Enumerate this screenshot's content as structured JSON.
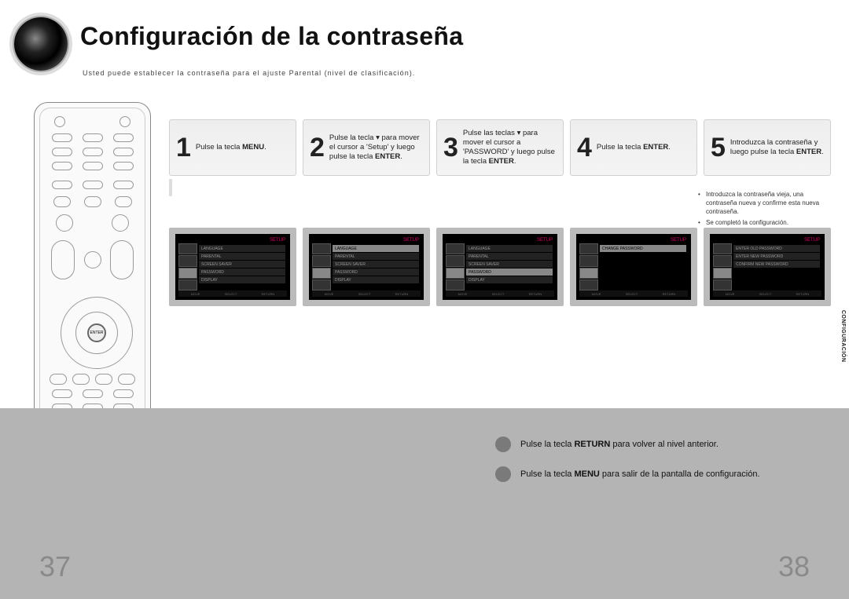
{
  "title": "Configuración de la contraseña",
  "subtitle": "Usted puede establecer la contraseña para el ajuste Parental (nivel de clasificación).",
  "remote": {
    "enter_label": "ENTER"
  },
  "steps": [
    {
      "num": "1",
      "html": "Pulse la tecla <b>MENU</b>."
    },
    {
      "num": "2",
      "html": "Pulse la tecla ▾ para mover el cursor a 'Setup' y luego pulse la tecla <b>ENTER</b>."
    },
    {
      "num": "3",
      "html": "Pulse las teclas ▾ para mover el cursor a 'PASSWORD' y luego pulse la tecla <b>ENTER</b>."
    },
    {
      "num": "4",
      "html": "Pulse la tecla <b>ENTER</b>."
    },
    {
      "num": "5",
      "html": "Introduzca la contraseña y luego pulse la tecla <b>ENTER</b>."
    }
  ],
  "bullets": [
    "Introduzca la contraseña vieja, una contraseña nueva y confirme esta nueva contraseña.",
    "Se completó la configuración."
  ],
  "side_tab": "CONFIGURACIÓN",
  "tips": [
    {
      "html": "Pulse la tecla <b>RETURN</b> para volver al nivel anterior."
    },
    {
      "html": "Pulse la tecla <b>MENU</b> para salir de la pantalla de configuración."
    }
  ],
  "page_left": "37",
  "page_right": "38",
  "screenshots": {
    "menu_rows": [
      "LANGUAGE",
      "PARENTAL",
      "SCREEN SAVER",
      "PASSWORD",
      "DISPLAY"
    ],
    "password_rows": [
      "ENTER OLD PASSWORD",
      "ENTER NEW PASSWORD",
      "CONFIRM NEW PASSWORD"
    ],
    "title_label": "SETUP",
    "colors": {
      "frame": "#bbbbbb",
      "bg": "#000000",
      "row": "#222222",
      "row_hl": "#888888",
      "tab": "#333333",
      "header_accent": "#dd0066"
    }
  }
}
